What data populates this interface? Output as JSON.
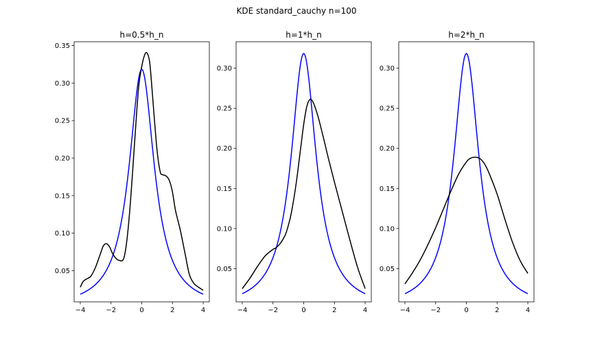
{
  "figure": {
    "suptitle": "KDE standard_cauchy n=100"
  },
  "chart_data": [
    {
      "type": "line",
      "title": "h=0.5*h_n",
      "xlabel": "",
      "ylabel": "",
      "xlim": [
        -4.4,
        4.4
      ],
      "ylim": [
        0.0085,
        0.355
      ],
      "xticks": [
        -4,
        -2,
        0,
        2,
        4
      ],
      "yticks": [
        0.05,
        0.1,
        0.15,
        0.2,
        0.25,
        0.3,
        0.35
      ],
      "ytick_labels": [
        "0.05",
        "0.10",
        "0.15",
        "0.20",
        "0.25",
        "0.30",
        "0.35"
      ],
      "grid": false,
      "colors": {
        "true_density": "#0000ff",
        "kde": "#000000"
      },
      "series": [
        {
          "x": [
            -4,
            -3.8,
            -3.5,
            -3.3,
            -3.0,
            -2.7,
            -2.5,
            -2.3,
            -2.1,
            -1.9,
            -1.7,
            -1.5,
            -1.2,
            -1.0,
            -0.8,
            -0.6,
            -0.4,
            -0.2,
            0,
            0.2,
            0.35,
            0.5,
            0.6,
            0.8,
            1.0,
            1.2,
            1.35,
            1.6,
            1.8,
            2.0,
            2.2,
            2.5,
            2.8,
            3.1,
            3.4,
            3.7,
            4.0
          ],
          "values": [
            0.028,
            0.036,
            0.04,
            0.043,
            0.055,
            0.072,
            0.083,
            0.086,
            0.082,
            0.073,
            0.067,
            0.064,
            0.065,
            0.085,
            0.125,
            0.18,
            0.24,
            0.295,
            0.322,
            0.338,
            0.34,
            0.33,
            0.31,
            0.258,
            0.21,
            0.182,
            0.178,
            0.176,
            0.17,
            0.155,
            0.13,
            0.105,
            0.075,
            0.045,
            0.033,
            0.028,
            0.024
          ]
        }
      ]
    },
    {
      "type": "line",
      "title": "h=1*h_n",
      "xlabel": "",
      "ylabel": "",
      "xlim": [
        -4.4,
        4.4
      ],
      "ylim": [
        0.0085,
        0.333
      ],
      "xticks": [
        -4,
        -2,
        0,
        2,
        4
      ],
      "yticks": [
        0.05,
        0.1,
        0.15,
        0.2,
        0.25,
        0.3
      ],
      "ytick_labels": [
        "0.05",
        "0.10",
        "0.15",
        "0.20",
        "0.25",
        "0.30"
      ],
      "grid": false,
      "colors": {
        "true_density": "#0000ff",
        "kde": "#000000"
      },
      "series": [
        {
          "x": [
            -4,
            -3.5,
            -3.0,
            -2.5,
            -2.0,
            -1.8,
            -1.5,
            -1.2,
            -1.0,
            -0.8,
            -0.5,
            -0.2,
            0,
            0.2,
            0.4,
            0.6,
            0.8,
            1.0,
            1.3,
            1.6,
            2.0,
            2.5,
            3.0,
            3.5,
            4.0
          ],
          "values": [
            0.025,
            0.038,
            0.053,
            0.066,
            0.074,
            0.076,
            0.082,
            0.092,
            0.104,
            0.12,
            0.155,
            0.2,
            0.23,
            0.252,
            0.261,
            0.258,
            0.248,
            0.235,
            0.212,
            0.188,
            0.158,
            0.122,
            0.086,
            0.052,
            0.025
          ]
        }
      ]
    },
    {
      "type": "line",
      "title": "h=2*h_n",
      "xlabel": "",
      "ylabel": "",
      "xlim": [
        -4.4,
        4.4
      ],
      "ylim": [
        0.0085,
        0.333
      ],
      "xticks": [
        -4,
        -2,
        0,
        2,
        4
      ],
      "yticks": [
        0.05,
        0.1,
        0.15,
        0.2,
        0.25,
        0.3
      ],
      "ytick_labels": [
        "0.05",
        "0.10",
        "0.15",
        "0.20",
        "0.25",
        "0.30"
      ],
      "grid": false,
      "colors": {
        "true_density": "#0000ff",
        "kde": "#000000"
      },
      "series": [
        {
          "x": [
            -4,
            -3.5,
            -3.0,
            -2.5,
            -2.0,
            -1.5,
            -1.0,
            -0.5,
            0,
            0.3,
            0.6,
            0.9,
            1.2,
            1.5,
            2.0,
            2.5,
            3.0,
            3.5,
            4.0
          ],
          "values": [
            0.031,
            0.045,
            0.061,
            0.08,
            0.101,
            0.124,
            0.147,
            0.168,
            0.183,
            0.188,
            0.189,
            0.187,
            0.18,
            0.168,
            0.143,
            0.112,
            0.083,
            0.06,
            0.044
          ]
        }
      ]
    }
  ]
}
